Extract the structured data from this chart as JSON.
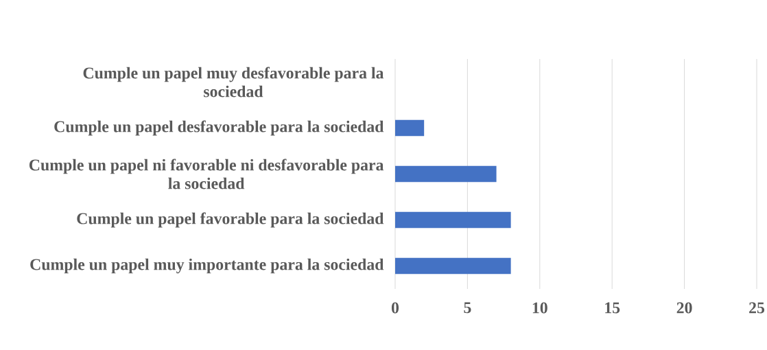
{
  "chart_data": {
    "type": "bar",
    "orientation": "horizontal",
    "categories": [
      "Cumple un papel muy desfavorable para la sociedad",
      "Cumple un papel desfavorable para la sociedad",
      "Cumple un papel ni favorable ni desfavorable para la sociedad",
      "Cumple un papel favorable para la sociedad",
      "Cumple un papel muy importante para la sociedad"
    ],
    "values": [
      0,
      2,
      7,
      8,
      8
    ],
    "color": "#4472c4",
    "xlim": [
      0,
      25
    ],
    "xticks": [
      0,
      5,
      10,
      15,
      20,
      25
    ],
    "grid": "x"
  }
}
